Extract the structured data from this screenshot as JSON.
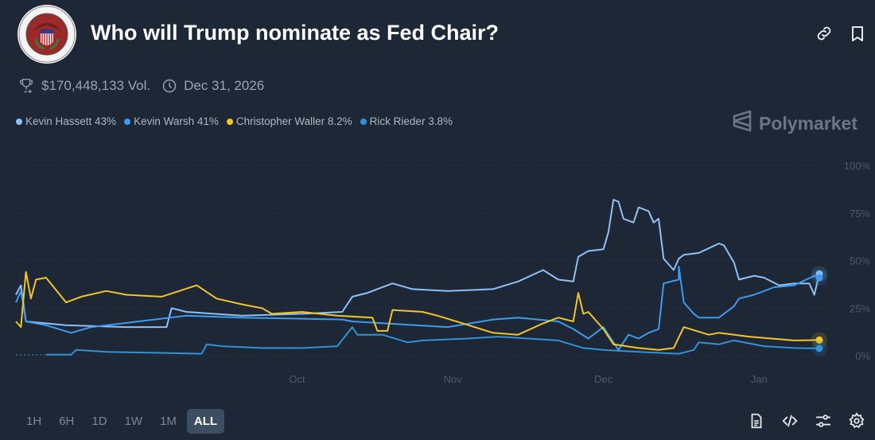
{
  "header": {
    "title": "Who will Trump nominate as Fed Chair?",
    "logo_alt": "Board of Governors of the Federal Reserve System",
    "icons": [
      "link-icon",
      "bookmark-icon"
    ]
  },
  "meta": {
    "volume": "$170,448,133 Vol.",
    "end_date": "Dec 31, 2026"
  },
  "brand": "Polymarket",
  "legend": [
    {
      "label": "Kevin Hassett 43%",
      "color": "#8fc1f5"
    },
    {
      "label": "Kevin Warsh 41%",
      "color": "#3d9bf0"
    },
    {
      "label": "Christopher Waller 8.2%",
      "color": "#f2c62a"
    },
    {
      "label": "Rick Rieder 3.8%",
      "color": "#2f93d6"
    }
  ],
  "ranges": [
    "1H",
    "6H",
    "1D",
    "1W",
    "1M",
    "ALL"
  ],
  "active_range": "ALL",
  "toolbar_icons": [
    "document-icon",
    "embed-code-icon",
    "sliders-icon",
    "settings-gear-icon"
  ],
  "chart_data": {
    "type": "line",
    "title": "",
    "xlabel": "",
    "ylabel": "",
    "x_range": [
      "2025-08-06",
      "2026-01-13"
    ],
    "x_ticks": [
      {
        "date": "2025-10-01",
        "label": "Oct"
      },
      {
        "date": "2025-11-01",
        "label": "Nov"
      },
      {
        "date": "2025-12-01",
        "label": "Dec"
      },
      {
        "date": "2026-01-01",
        "label": "Jan"
      }
    ],
    "ylim": [
      0,
      100
    ],
    "y_ticks": [
      {
        "value": 100,
        "label": "100%"
      },
      {
        "value": 75,
        "label": "75%"
      },
      {
        "value": 50,
        "label": "50%"
      },
      {
        "value": 25,
        "label": "25%"
      },
      {
        "value": 0,
        "label": "0%"
      }
    ],
    "y_axis_side": "right",
    "grid": true,
    "legend_position": "top-left",
    "series": [
      {
        "name": "Kevin Hassett",
        "color": "#8fc1f5",
        "last": 43,
        "points": [
          [
            "2025-08-06",
            32
          ],
          [
            "2025-08-07",
            37
          ],
          [
            "2025-08-08",
            18
          ],
          [
            "2025-08-16",
            16
          ],
          [
            "2025-08-28",
            15
          ],
          [
            "2025-09-05",
            15
          ],
          [
            "2025-09-06",
            25
          ],
          [
            "2025-09-09",
            23
          ],
          [
            "2025-09-20",
            21
          ],
          [
            "2025-10-02",
            22
          ],
          [
            "2025-10-10",
            23
          ],
          [
            "2025-10-12",
            31
          ],
          [
            "2025-10-15",
            33
          ],
          [
            "2025-10-20",
            38
          ],
          [
            "2025-10-24",
            35
          ],
          [
            "2025-10-31",
            34
          ],
          [
            "2025-11-09",
            35
          ],
          [
            "2025-11-14",
            39
          ],
          [
            "2025-11-19",
            45
          ],
          [
            "2025-11-22",
            40
          ],
          [
            "2025-11-25",
            39
          ],
          [
            "2025-11-26",
            52
          ],
          [
            "2025-11-28",
            55
          ],
          [
            "2025-12-01",
            56
          ],
          [
            "2025-12-02",
            65
          ],
          [
            "2025-12-03",
            82
          ],
          [
            "2025-12-04",
            81
          ],
          [
            "2025-12-05",
            72
          ],
          [
            "2025-12-07",
            70
          ],
          [
            "2025-12-08",
            78
          ],
          [
            "2025-12-10",
            76
          ],
          [
            "2025-12-11",
            70
          ],
          [
            "2025-12-12",
            72
          ],
          [
            "2025-12-13",
            51
          ],
          [
            "2025-12-15",
            45
          ],
          [
            "2025-12-16",
            51
          ],
          [
            "2025-12-17",
            53
          ],
          [
            "2025-12-20",
            54
          ],
          [
            "2025-12-24",
            59
          ],
          [
            "2025-12-25",
            58
          ],
          [
            "2025-12-27",
            49
          ],
          [
            "2025-12-28",
            40
          ],
          [
            "2025-12-31",
            42
          ],
          [
            "2026-01-02",
            41
          ],
          [
            "2026-01-05",
            37
          ],
          [
            "2026-01-08",
            38
          ],
          [
            "2026-01-11",
            38
          ],
          [
            "2026-01-12",
            32
          ],
          [
            "2026-01-13",
            43
          ]
        ]
      },
      {
        "name": "Kevin Warsh",
        "color": "#3d9bf0",
        "last": 41,
        "points": [
          [
            "2025-08-06",
            28
          ],
          [
            "2025-08-07",
            34
          ],
          [
            "2025-08-08",
            18
          ],
          [
            "2025-08-12",
            16
          ],
          [
            "2025-08-17",
            12
          ],
          [
            "2025-08-21",
            15
          ],
          [
            "2025-09-09",
            21
          ],
          [
            "2025-09-20",
            20
          ],
          [
            "2025-10-10",
            19
          ],
          [
            "2025-10-12",
            18
          ],
          [
            "2025-10-31",
            15
          ],
          [
            "2025-11-09",
            19
          ],
          [
            "2025-11-14",
            20
          ],
          [
            "2025-11-22",
            18
          ],
          [
            "2025-11-25",
            14
          ],
          [
            "2025-11-28",
            9
          ],
          [
            "2025-12-01",
            15
          ],
          [
            "2025-12-04",
            3
          ],
          [
            "2025-12-06",
            11
          ],
          [
            "2025-12-08",
            9
          ],
          [
            "2025-12-10",
            12
          ],
          [
            "2025-12-12",
            14
          ],
          [
            "2025-12-13",
            38
          ],
          [
            "2025-12-16",
            40
          ],
          [
            "2025-12-16",
            47
          ],
          [
            "2025-12-17",
            28
          ],
          [
            "2025-12-19",
            22
          ],
          [
            "2025-12-20",
            20
          ],
          [
            "2025-12-24",
            20
          ],
          [
            "2025-12-27",
            26
          ],
          [
            "2025-12-28",
            30
          ],
          [
            "2025-12-31",
            32
          ],
          [
            "2026-01-04",
            36
          ],
          [
            "2026-01-08",
            37
          ],
          [
            "2026-01-12",
            42
          ],
          [
            "2026-01-13",
            41
          ]
        ]
      },
      {
        "name": "Christopher Waller",
        "color": "#f2c62a",
        "last": 8.2,
        "points": [
          [
            "2025-08-06",
            18
          ],
          [
            "2025-08-07",
            15
          ],
          [
            "2025-08-08",
            44
          ],
          [
            "2025-08-09",
            30
          ],
          [
            "2025-08-10",
            40
          ],
          [
            "2025-08-12",
            41
          ],
          [
            "2025-08-16",
            28
          ],
          [
            "2025-08-19",
            31
          ],
          [
            "2025-08-24",
            34
          ],
          [
            "2025-08-28",
            32
          ],
          [
            "2025-09-04",
            31
          ],
          [
            "2025-09-11",
            37
          ],
          [
            "2025-09-15",
            30
          ],
          [
            "2025-09-20",
            27
          ],
          [
            "2025-09-24",
            25
          ],
          [
            "2025-09-26",
            22
          ],
          [
            "2025-10-02",
            23
          ],
          [
            "2025-10-09",
            21
          ],
          [
            "2025-10-16",
            20
          ],
          [
            "2025-10-17",
            13
          ],
          [
            "2025-10-19",
            13
          ],
          [
            "2025-10-20",
            24
          ],
          [
            "2025-10-26",
            23
          ],
          [
            "2025-10-29",
            21
          ],
          [
            "2025-11-03",
            17
          ],
          [
            "2025-11-09",
            12
          ],
          [
            "2025-11-14",
            11
          ],
          [
            "2025-11-19",
            17
          ],
          [
            "2025-11-22",
            20
          ],
          [
            "2025-11-25",
            18
          ],
          [
            "2025-11-26",
            33
          ],
          [
            "2025-11-27",
            22
          ],
          [
            "2025-11-28",
            23
          ],
          [
            "2025-12-01",
            14
          ],
          [
            "2025-12-03",
            6
          ],
          [
            "2025-12-08",
            4
          ],
          [
            "2025-12-12",
            3
          ],
          [
            "2025-12-15",
            4
          ],
          [
            "2025-12-17",
            15
          ],
          [
            "2025-12-22",
            11
          ],
          [
            "2025-12-24",
            12
          ],
          [
            "2025-12-30",
            10
          ],
          [
            "2026-01-08",
            8
          ],
          [
            "2026-01-13",
            8.2
          ]
        ]
      },
      {
        "name": "Rick Rieder",
        "color": "#2f93d6",
        "last": 3.8,
        "points": [
          [
            "2025-08-12",
            0.5
          ],
          [
            "2025-08-17",
            0.5
          ],
          [
            "2025-08-18",
            3
          ],
          [
            "2025-08-24",
            2
          ],
          [
            "2025-09-03",
            1.5
          ],
          [
            "2025-09-12",
            1
          ],
          [
            "2025-09-13",
            6
          ],
          [
            "2025-09-16",
            5
          ],
          [
            "2025-09-24",
            4
          ],
          [
            "2025-10-02",
            4
          ],
          [
            "2025-10-09",
            5
          ],
          [
            "2025-10-12",
            15
          ],
          [
            "2025-10-13",
            11
          ],
          [
            "2025-10-18",
            11
          ],
          [
            "2025-10-23",
            7
          ],
          [
            "2025-10-26",
            8
          ],
          [
            "2025-11-04",
            9
          ],
          [
            "2025-11-10",
            10
          ],
          [
            "2025-11-16",
            9
          ],
          [
            "2025-11-22",
            8
          ],
          [
            "2025-11-27",
            4
          ],
          [
            "2025-12-01",
            3
          ],
          [
            "2025-12-08",
            2
          ],
          [
            "2025-12-16",
            1
          ],
          [
            "2025-12-19",
            3
          ],
          [
            "2025-12-20",
            7
          ],
          [
            "2025-12-24",
            6
          ],
          [
            "2025-12-27",
            8
          ],
          [
            "2026-01-02",
            5
          ],
          [
            "2026-01-08",
            4
          ],
          [
            "2026-01-13",
            3.8
          ]
        ]
      }
    ]
  }
}
